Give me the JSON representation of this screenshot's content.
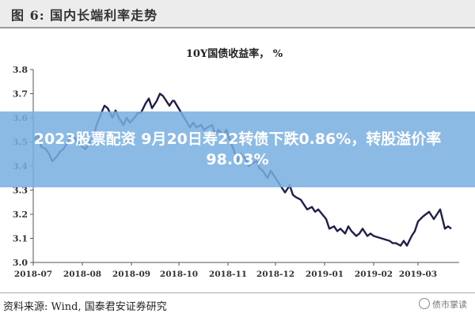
{
  "figure": {
    "title": "图 6:  国内长端利率走势",
    "source": "资料来源:  Wind, 国泰君安证券研究",
    "watermark": "债市掌读"
  },
  "overlay": {
    "text": "2023股票配资 9月20日寿22转债下跌0.86%，转股溢价率98.03%"
  },
  "chart_data": {
    "type": "line",
    "title": "10Y国债收益率， %",
    "xlabel": "",
    "ylabel": "",
    "x_tick_labels": [
      "2018-07",
      "2018-08",
      "2018-09",
      "2018-10",
      "2018-11",
      "2018-12",
      "2019-01",
      "2019-02",
      "2019-03"
    ],
    "ylim": [
      3.0,
      3.8
    ],
    "y_ticks": [
      "3.0",
      "3.1",
      "3.2",
      "3.3",
      "3.4",
      "3.5",
      "3.6",
      "3.7",
      "3.8"
    ],
    "grid": false,
    "series": [
      {
        "color": "#1f1f4a",
        "x": [
          "2018-07-02",
          "2018-07-04",
          "2018-07-06",
          "2018-07-09",
          "2018-07-11",
          "2018-07-13",
          "2018-07-16",
          "2018-07-18",
          "2018-07-20",
          "2018-07-23",
          "2018-07-25",
          "2018-07-27",
          "2018-07-30",
          "2018-08-01",
          "2018-08-03",
          "2018-08-06",
          "2018-08-08",
          "2018-08-10",
          "2018-08-13",
          "2018-08-15",
          "2018-08-17",
          "2018-08-20",
          "2018-08-22",
          "2018-08-24",
          "2018-08-27",
          "2018-08-29",
          "2018-08-31",
          "2018-09-03",
          "2018-09-05",
          "2018-09-07",
          "2018-09-10",
          "2018-09-12",
          "2018-09-14",
          "2018-09-17",
          "2018-09-19",
          "2018-09-21",
          "2018-09-25",
          "2018-09-27",
          "2018-09-28",
          "2018-10-08",
          "2018-10-10",
          "2018-10-12",
          "2018-10-15",
          "2018-10-17",
          "2018-10-19",
          "2018-10-22",
          "2018-10-24",
          "2018-10-26",
          "2018-10-29",
          "2018-10-31",
          "2018-11-02",
          "2018-11-05",
          "2018-11-07",
          "2018-11-09",
          "2018-11-12",
          "2018-11-14",
          "2018-11-16",
          "2018-11-19",
          "2018-11-21",
          "2018-11-23",
          "2018-11-26",
          "2018-11-28",
          "2018-11-30",
          "2018-12-03",
          "2018-12-05",
          "2018-12-07",
          "2018-12-10",
          "2018-12-12",
          "2018-12-14",
          "2018-12-17",
          "2018-12-19",
          "2018-12-21",
          "2018-12-24",
          "2018-12-26",
          "2018-12-28",
          "2019-01-02",
          "2019-01-04",
          "2019-01-07",
          "2019-01-09",
          "2019-01-11",
          "2019-01-14",
          "2019-01-16",
          "2019-01-18",
          "2019-01-21",
          "2019-01-23",
          "2019-01-25",
          "2019-01-28",
          "2019-01-30",
          "2019-02-01",
          "2019-02-11",
          "2019-02-13",
          "2019-02-15",
          "2019-02-18",
          "2019-02-20",
          "2019-02-22",
          "2019-02-25",
          "2019-02-27",
          "2019-03-01",
          "2019-03-04",
          "2019-03-06",
          "2019-03-08",
          "2019-03-11",
          "2019-03-13",
          "2019-03-15",
          "2019-03-18",
          "2019-03-20",
          "2019-03-22"
        ],
        "y": [
          3.51,
          3.53,
          3.48,
          3.47,
          3.45,
          3.42,
          3.44,
          3.46,
          3.47,
          3.5,
          3.53,
          3.52,
          3.49,
          3.48,
          3.47,
          3.5,
          3.52,
          3.57,
          3.62,
          3.65,
          3.64,
          3.6,
          3.63,
          3.6,
          3.57,
          3.6,
          3.58,
          3.6,
          3.62,
          3.62,
          3.66,
          3.68,
          3.64,
          3.67,
          3.7,
          3.69,
          3.65,
          3.67,
          3.67,
          3.56,
          3.58,
          3.56,
          3.57,
          3.55,
          3.56,
          3.57,
          3.53,
          3.55,
          3.53,
          3.55,
          3.51,
          3.46,
          3.42,
          3.45,
          3.43,
          3.4,
          3.41,
          3.42,
          3.39,
          3.38,
          3.35,
          3.38,
          3.36,
          3.33,
          3.31,
          3.29,
          3.32,
          3.28,
          3.27,
          3.26,
          3.24,
          3.22,
          3.23,
          3.21,
          3.22,
          3.18,
          3.14,
          3.15,
          3.13,
          3.14,
          3.12,
          3.15,
          3.13,
          3.11,
          3.12,
          3.14,
          3.11,
          3.12,
          3.11,
          3.09,
          3.08,
          3.08,
          3.07,
          3.09,
          3.07,
          3.11,
          3.13,
          3.17,
          3.19,
          3.2,
          3.21,
          3.18,
          3.2,
          3.22,
          3.14,
          3.15,
          3.14
        ]
      }
    ]
  }
}
